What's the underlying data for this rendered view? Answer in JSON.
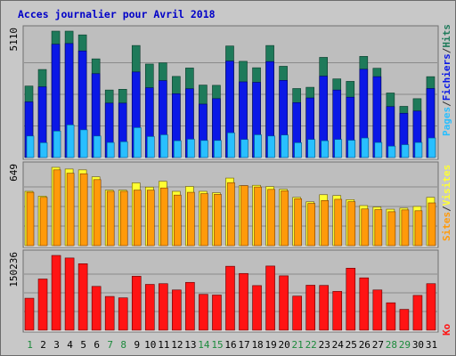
{
  "title": "Acces journalier pour Avril 2018",
  "colors": {
    "frame_bg": "#c8c8c8",
    "panel_bg": "#bebebe",
    "hits": "#1e7a5a",
    "files": "#0a18e6",
    "pages": "#28bfff",
    "visits": "#ffff32",
    "sites": "#ff9a0a",
    "ko": "#ff1414",
    "weekday_label": "#000000",
    "weekend_label": "#1c8a3c",
    "title": "#0000c8"
  },
  "chart_data": [
    {
      "type": "bar",
      "name": "hits-files-pages",
      "ymax_label": "5110",
      "ylim": [
        0,
        5110
      ],
      "categories": [
        "1",
        "2",
        "3",
        "4",
        "5",
        "6",
        "7",
        "8",
        "9",
        "10",
        "11",
        "12",
        "13",
        "14",
        "15",
        "16",
        "17",
        "18",
        "19",
        "20",
        "21",
        "22",
        "23",
        "24",
        "25",
        "26",
        "27",
        "28",
        "29",
        "30",
        "31"
      ],
      "right_labels": [
        "Pages",
        "/",
        "Fichiers",
        "/",
        "Hits"
      ],
      "series": [
        {
          "name": "Hits",
          "values": [
            2890,
            3560,
            5110,
            5110,
            4960,
            3990,
            2730,
            2760,
            4530,
            3780,
            3830,
            3280,
            3620,
            2930,
            2920,
            4510,
            3890,
            3630,
            4530,
            3690,
            2790,
            2840,
            4050,
            3180,
            3080,
            4090,
            3610,
            2610,
            2070,
            2380,
            3270
          ]
        },
        {
          "name": "Fichiers",
          "values": [
            2250,
            2860,
            4580,
            4610,
            4310,
            3390,
            2200,
            2200,
            3460,
            2820,
            3110,
            2580,
            2780,
            2160,
            2380,
            3900,
            3060,
            3040,
            3880,
            3120,
            2220,
            2410,
            3290,
            2730,
            2440,
            3570,
            3270,
            2060,
            1790,
            1880,
            2790
          ]
        },
        {
          "name": "Pages",
          "values": [
            870,
            600,
            1070,
            1320,
            1120,
            870,
            610,
            640,
            1210,
            850,
            920,
            680,
            740,
            690,
            690,
            1000,
            730,
            920,
            870,
            910,
            600,
            730,
            680,
            730,
            700,
            790,
            610,
            460,
            520,
            610,
            790
          ]
        }
      ]
    },
    {
      "type": "bar",
      "name": "visits-sites",
      "ymax_label": "649",
      "ylim": [
        0,
        649
      ],
      "categories": [
        "1",
        "2",
        "3",
        "4",
        "5",
        "6",
        "7",
        "8",
        "9",
        "10",
        "11",
        "12",
        "13",
        "14",
        "15",
        "16",
        "17",
        "18",
        "19",
        "20",
        "21",
        "22",
        "23",
        "24",
        "25",
        "26",
        "27",
        "28",
        "29",
        "30",
        "31"
      ],
      "right_labels": [
        "Sites",
        "/",
        "Visites"
      ],
      "series": [
        {
          "name": "Visites",
          "values": [
            450,
            410,
            649,
            635,
            628,
            570,
            460,
            460,
            520,
            485,
            533,
            450,
            490,
            450,
            438,
            560,
            497,
            500,
            489,
            467,
            400,
            363,
            422,
            415,
            381,
            332,
            320,
            302,
            311,
            325,
            400
          ]
        },
        {
          "name": "Sites",
          "values": [
            442,
            400,
            628,
            600,
            596,
            547,
            450,
            450,
            460,
            460,
            478,
            419,
            442,
            431,
            425,
            522,
            497,
            486,
            466,
            454,
            388,
            350,
            374,
            384,
            364,
            304,
            298,
            281,
            296,
            289,
            354
          ]
        }
      ]
    },
    {
      "type": "bar",
      "name": "ko",
      "ymax_label": "150236",
      "ylim": [
        0,
        150236
      ],
      "categories": [
        "1",
        "2",
        "3",
        "4",
        "5",
        "6",
        "7",
        "8",
        "9",
        "10",
        "11",
        "12",
        "13",
        "14",
        "15",
        "16",
        "17",
        "18",
        "19",
        "20",
        "21",
        "22",
        "23",
        "24",
        "25",
        "26",
        "27",
        "28",
        "29",
        "30",
        "31"
      ],
      "right_labels": [
        "Ko"
      ],
      "series": [
        {
          "name": "Ko",
          "values": [
            64237,
            102860,
            150236,
            145064,
            133600,
            88050,
            67830,
            64980,
            108450,
            92060,
            93460,
            80870,
            96100,
            72110,
            70675,
            128490,
            114010,
            89650,
            128960,
            109280,
            68490,
            90395,
            90000,
            77980,
            124660,
            105200,
            80860,
            55100,
            41880,
            69910,
            93460
          ]
        }
      ]
    }
  ],
  "weekend_days": [
    1,
    7,
    8,
    14,
    15,
    21,
    22,
    28,
    29
  ]
}
